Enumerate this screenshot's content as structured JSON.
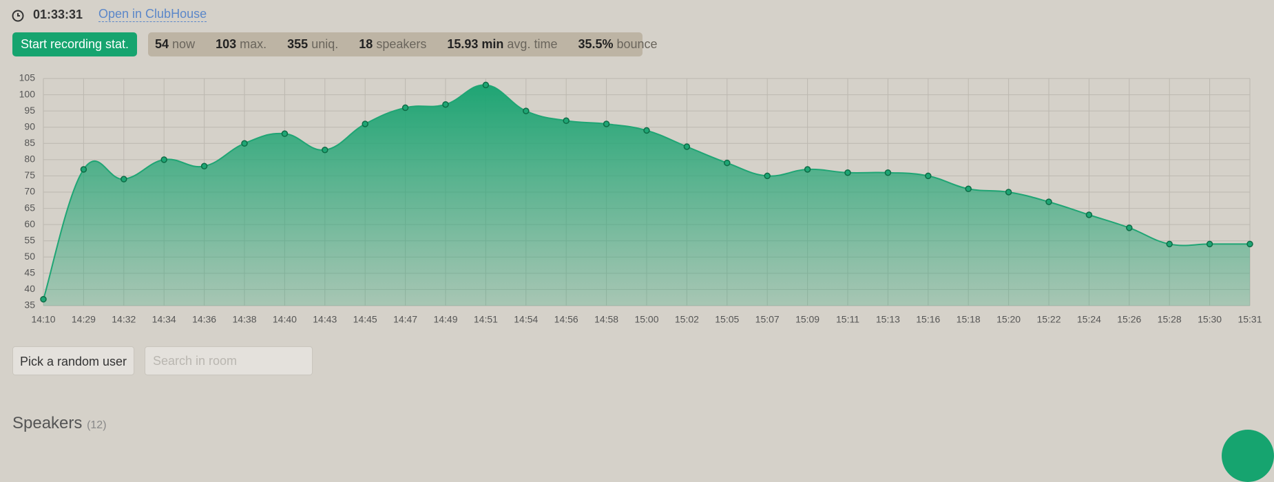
{
  "header": {
    "timer": "01:33:31",
    "link": "Open in ClubHouse"
  },
  "record_button": "Start recording stat.",
  "stats": [
    {
      "value": "54",
      "label": "now"
    },
    {
      "value": "103",
      "label": "max."
    },
    {
      "value": "355",
      "label": "uniq."
    },
    {
      "value": "18",
      "label": "speakers"
    },
    {
      "value": "15.93 min",
      "label": "avg. time"
    },
    {
      "value": "35.5%",
      "label": "bounce"
    }
  ],
  "chart_data": {
    "type": "area",
    "categories": [
      "14:10",
      "14:29",
      "14:32",
      "14:34",
      "14:36",
      "14:38",
      "14:40",
      "14:43",
      "14:45",
      "14:47",
      "14:49",
      "14:51",
      "14:54",
      "14:56",
      "14:58",
      "15:00",
      "15:02",
      "15:05",
      "15:07",
      "15:09",
      "15:11",
      "15:13",
      "15:16",
      "15:18",
      "15:20",
      "15:22",
      "15:24",
      "15:26",
      "15:28",
      "15:30",
      "15:31"
    ],
    "values": [
      37,
      77,
      74,
      80,
      78,
      85,
      88,
      83,
      91,
      96,
      97,
      103,
      95,
      92,
      91,
      89,
      84,
      79,
      75,
      77,
      76,
      76,
      75,
      71,
      70,
      67,
      63,
      59,
      54,
      54,
      54
    ],
    "color": "#1fa574",
    "ylim": [
      35,
      105
    ],
    "yticks": [
      35,
      40,
      45,
      50,
      55,
      60,
      65,
      70,
      75,
      80,
      85,
      90,
      95,
      100,
      105
    ],
    "grid": true
  },
  "controls": {
    "random_user": "Pick a random user",
    "search_placeholder": "Search in room"
  },
  "section": {
    "title": "Speakers",
    "count": "(12)"
  }
}
